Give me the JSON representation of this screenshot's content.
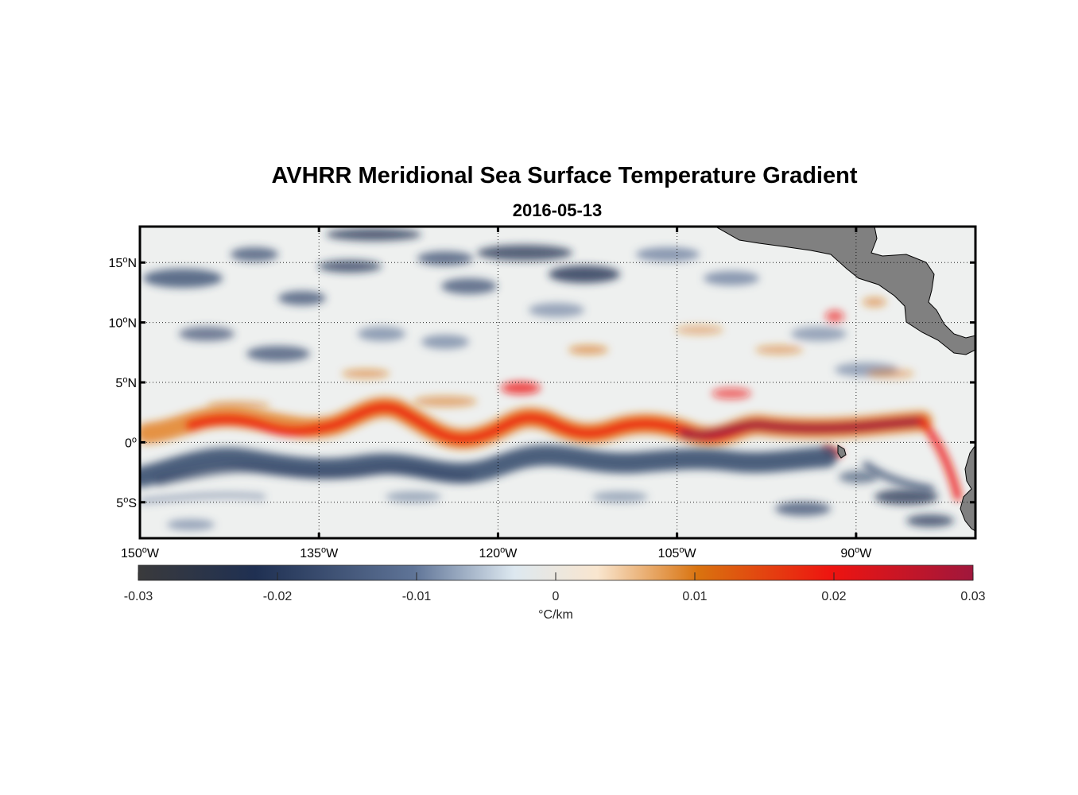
{
  "title": "AVHRR Meridional Sea Surface Temperature Gradient",
  "subtitle": "2016-05-13",
  "map": {
    "lon_range": [
      -150,
      -80
    ],
    "lat_range": [
      -8,
      18
    ],
    "lat_labels": [
      {
        "lat": 15,
        "text": "15",
        "hemi": "N"
      },
      {
        "lat": 10,
        "text": "10",
        "hemi": "N"
      },
      {
        "lat": 5,
        "text": "5",
        "hemi": "N"
      },
      {
        "lat": 0,
        "text": "0",
        "hemi": ""
      },
      {
        "lat": -5,
        "text": "5",
        "hemi": "S"
      }
    ],
    "lon_labels": [
      {
        "lon": -150,
        "text": "150",
        "hemi": "W"
      },
      {
        "lon": -135,
        "text": "135",
        "hemi": "W"
      },
      {
        "lon": -120,
        "text": "120",
        "hemi": "W"
      },
      {
        "lon": -105,
        "text": "105",
        "hemi": "W"
      },
      {
        "lon": -90,
        "text": "90",
        "hemi": "W"
      }
    ],
    "land_color": "#808080",
    "ocean_color": "#eef0ef"
  },
  "colorbar": {
    "min": -0.03,
    "max": 0.03,
    "ticks": [
      -0.03,
      -0.02,
      -0.01,
      0,
      0.01,
      0.02,
      0.03
    ],
    "tick_labels": [
      "-0.03",
      "-0.02",
      "-0.01",
      "0",
      "0.01",
      "0.02",
      "0.03"
    ],
    "unit_label": "°C/km",
    "colors": [
      "#3a3a3c",
      "#1f3052",
      "#5f7497",
      "#dde8f0",
      "#f9e6cf",
      "#d9730f",
      "#ee1410",
      "#a0173c"
    ]
  }
}
